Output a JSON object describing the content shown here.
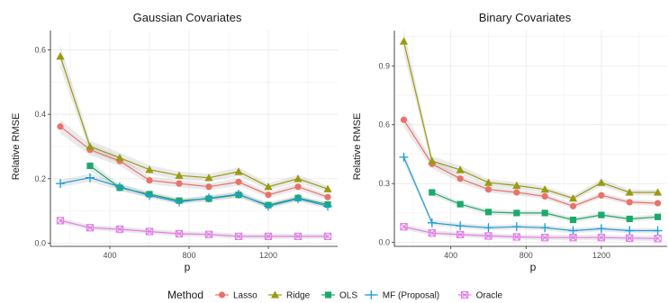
{
  "chart_data": [
    {
      "type": "line",
      "title": "Gaussian Covariates",
      "xlabel": "p",
      "ylabel": "Relative RMSE",
      "x": [
        150,
        300,
        450,
        600,
        750,
        900,
        1050,
        1200,
        1350,
        1500
      ],
      "xlim": [
        100,
        1550
      ],
      "ylim": [
        -0.01,
        0.66
      ],
      "xticks": [
        400,
        800,
        1200
      ],
      "yticks": [
        0.0,
        0.2,
        0.4,
        0.6
      ],
      "ytick_labels": [
        "0.0",
        "0.2",
        "0.4",
        "0.6"
      ],
      "grid": true,
      "series": [
        {
          "name": "Lasso",
          "values": [
            0.362,
            0.29,
            0.255,
            0.195,
            0.185,
            0.175,
            0.19,
            0.15,
            0.175,
            0.143
          ]
        },
        {
          "name": "Ridge",
          "values": [
            0.58,
            0.3,
            0.265,
            0.228,
            0.21,
            0.203,
            0.222,
            0.175,
            0.2,
            0.168
          ]
        },
        {
          "name": "OLS",
          "values": [
            null,
            0.24,
            0.172,
            0.152,
            0.132,
            0.138,
            0.15,
            0.118,
            0.14,
            0.12
          ]
        },
        {
          "name": "MF (Proposal)",
          "values": [
            0.185,
            0.203,
            0.175,
            0.148,
            0.128,
            0.14,
            0.152,
            0.115,
            0.138,
            0.115
          ]
        },
        {
          "name": "Oracle",
          "values": [
            0.07,
            0.048,
            0.043,
            0.036,
            0.029,
            0.027,
            0.021,
            0.021,
            0.021,
            0.021
          ]
        }
      ]
    },
    {
      "type": "line",
      "title": "Binary Covariates",
      "xlabel": "p",
      "ylabel": "Relative RMSE",
      "x": [
        150,
        300,
        450,
        600,
        750,
        900,
        1050,
        1200,
        1350,
        1500
      ],
      "xlim": [
        100,
        1550
      ],
      "ylim": [
        -0.02,
        1.08
      ],
      "xticks": [
        400,
        800,
        1200
      ],
      "yticks": [
        0.0,
        0.3,
        0.6,
        0.9
      ],
      "ytick_labels": [
        "0.0",
        "0.3",
        "0.6",
        "0.9"
      ],
      "grid": true,
      "series": [
        {
          "name": "Lasso",
          "values": [
            0.625,
            0.4,
            0.325,
            0.27,
            0.255,
            0.235,
            0.185,
            0.24,
            0.205,
            0.2
          ]
        },
        {
          "name": "Ridge",
          "values": [
            1.025,
            0.415,
            0.37,
            0.305,
            0.29,
            0.27,
            0.225,
            0.305,
            0.255,
            0.255
          ]
        },
        {
          "name": "OLS",
          "values": [
            null,
            0.255,
            0.195,
            0.155,
            0.15,
            0.15,
            0.115,
            0.14,
            0.12,
            0.13
          ]
        },
        {
          "name": "MF (Proposal)",
          "values": [
            0.435,
            0.1,
            0.085,
            0.075,
            0.08,
            0.075,
            0.06,
            0.07,
            0.06,
            0.06
          ]
        },
        {
          "name": "Oracle",
          "values": [
            0.08,
            0.048,
            0.04,
            0.033,
            0.028,
            0.025,
            0.025,
            0.025,
            0.022,
            0.02
          ]
        }
      ]
    }
  ],
  "legend": {
    "title": "Method",
    "placement": "bottom",
    "items": [
      {
        "label": "Lasso",
        "color": "#E8736C",
        "marker": "circle"
      },
      {
        "label": "Ridge",
        "color": "#9A9A12",
        "marker": "triangle"
      },
      {
        "label": "OLS",
        "color": "#1BAA6A",
        "marker": "square"
      },
      {
        "label": "MF (Proposal)",
        "color": "#1B9ED6",
        "marker": "plus"
      },
      {
        "label": "Oracle",
        "color": "#E47CE8",
        "marker": "boxx"
      }
    ]
  }
}
